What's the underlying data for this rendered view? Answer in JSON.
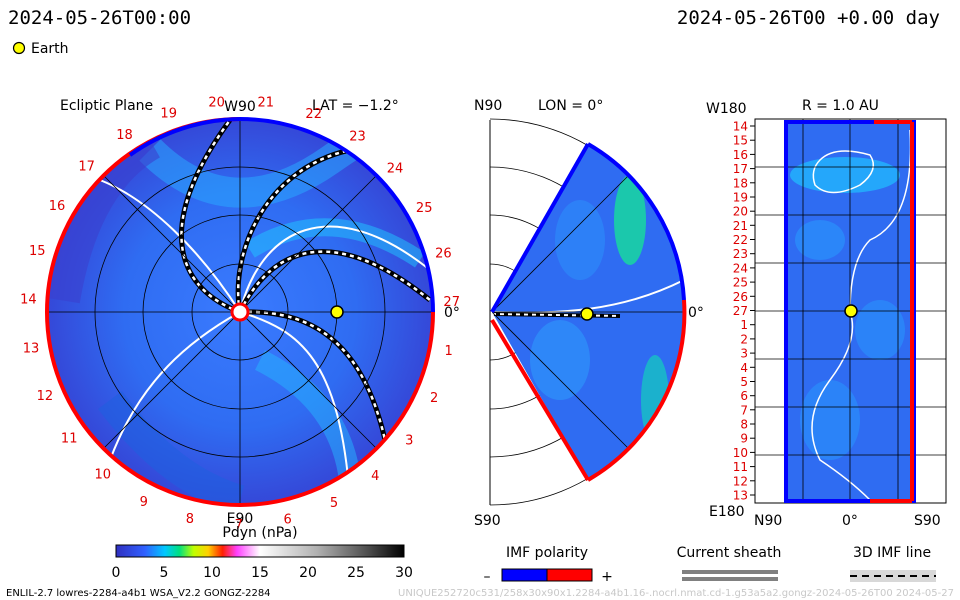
{
  "header": {
    "left_time": "2024-05-26T00:00",
    "right_time": "2024-05-26T00 +0.00 day",
    "legend_label": "Earth"
  },
  "ecliptic": {
    "title": "Ecliptic Plane",
    "top_label": "W90",
    "bottom_label": "E90",
    "right_label": "0°",
    "lat_label": "LAT = −1.2°",
    "rotation_numbers": [
      "1",
      "2",
      "3",
      "4",
      "5",
      "6",
      "7",
      "8",
      "9",
      "10",
      "11",
      "12",
      "13",
      "14",
      "15",
      "16",
      "17",
      "18",
      "19",
      "20",
      "21",
      "22",
      "23",
      "24",
      "25",
      "26",
      "27"
    ]
  },
  "meridional": {
    "top_label": "N90",
    "bottom_label": "S90",
    "right_label": "0°",
    "lon_label": "LON = 0°"
  },
  "radial": {
    "top_left_label": "W180",
    "bottom_left_label": "E180",
    "r_label": "R = 1.0 AU",
    "x_labels": [
      "N90",
      "0°",
      "S90"
    ],
    "y_labels": [
      "14",
      "15",
      "16",
      "17",
      "18",
      "19",
      "20",
      "21",
      "22",
      "23",
      "24",
      "25",
      "26",
      "27",
      "1",
      "2",
      "3",
      "4",
      "5",
      "6",
      "7",
      "8",
      "9",
      "10",
      "11",
      "12",
      "13"
    ]
  },
  "colorbar": {
    "title": "Pdyn (nPa)",
    "ticks": [
      "0",
      "5",
      "10",
      "15",
      "20",
      "25",
      "30"
    ],
    "range": [
      0,
      30
    ]
  },
  "legends": {
    "imf_title": "IMF polarity",
    "imf_minus": "–",
    "imf_plus": "+",
    "sheath_title": "Current sheath",
    "imf3d_title": "3D IMF line"
  },
  "footer": {
    "left": "ENLIL-2.7 lowres-2284-a4b1 WSA_V2.2 GONGZ-2284",
    "right": "UNIQUE252720c531/258x30x90x1.2284-a4b1.16-.nocrl.nmat.cd-1.g53a5a2.gongz-2024-05-26T00    2024-05-27"
  },
  "colors": {
    "earth": "#ffff00",
    "positive_polarity": "#ff0000",
    "negative_polarity": "#0000ff",
    "background_field": "#2f6fff",
    "label_red": "#dd0000"
  }
}
